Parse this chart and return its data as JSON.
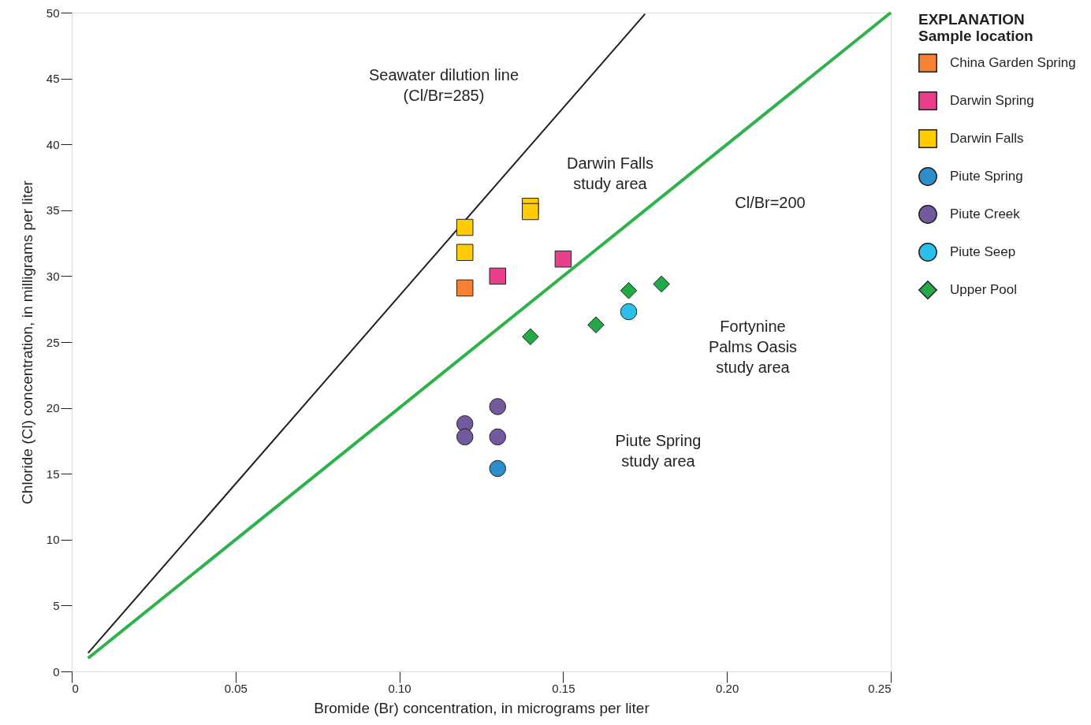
{
  "chart_data": {
    "type": "scatter",
    "xlabel": "Bromide (Br) concentration, in micrograms per liter",
    "ylabel": "Chloride (Cl) concentration, in milligrams per liter",
    "legend_title": "EXPLANATION\nSample location",
    "legend": "right",
    "xlim": [
      0,
      0.25
    ],
    "xticks": [
      {
        "value": 0,
        "label": "0"
      },
      {
        "value": 0.05,
        "label": "0.05"
      },
      {
        "value": 0.1,
        "label": "0.10"
      },
      {
        "value": 0.15,
        "label": "0.15"
      },
      {
        "value": 0.2,
        "label": "0.20"
      },
      {
        "value": 0.25,
        "label": "0.25"
      }
    ],
    "ylim": [
      0,
      50
    ],
    "yticks": [
      0,
      5,
      10,
      15,
      20,
      25,
      30,
      35,
      40,
      45,
      50
    ],
    "grid": false,
    "series": [
      {
        "type": "line",
        "color": "#231f20",
        "x": [
          0.005,
          0.175
        ],
        "values": [
          1.4,
          49.9
        ],
        "line_style": "solid"
      },
      {
        "type": "line",
        "color": "#2db34a",
        "x": [
          0.005,
          0.25
        ],
        "values": [
          1.0,
          50.0
        ],
        "line_style": "solid"
      },
      {
        "name": "China Garden Spring",
        "color": "#f58233",
        "marker": "square",
        "x": [
          0.12
        ],
        "values": [
          29.1
        ]
      },
      {
        "name": "Darwin Spring",
        "color": "#e83e8c",
        "marker": "square",
        "x": [
          0.13,
          0.15
        ],
        "values": [
          30.0,
          31.3
        ]
      },
      {
        "name": "Darwin Falls",
        "color": "#ffcc00",
        "marker": "square",
        "x": [
          0.12,
          0.12,
          0.14,
          0.14
        ],
        "values": [
          33.7,
          31.8,
          35.3,
          34.9
        ]
      },
      {
        "name": "Piute Spring",
        "color": "#2a8fcc",
        "marker": "circle",
        "x": [
          0.13
        ],
        "values": [
          15.4
        ]
      },
      {
        "name": "Piute Creek",
        "color": "#735a9e",
        "marker": "circle",
        "x": [
          0.12,
          0.12,
          0.13,
          0.13
        ],
        "values": [
          18.8,
          17.8,
          20.1,
          17.8
        ]
      },
      {
        "name": "Piute Seep",
        "color": "#2bbfec",
        "marker": "circle",
        "x": [
          0.17
        ],
        "values": [
          27.3
        ]
      },
      {
        "name": "Upper Pool",
        "color": "#22aa4a",
        "marker": "diamond",
        "x": [
          0.14,
          0.16,
          0.17,
          0.18
        ],
        "values": [
          25.4,
          26.3,
          28.9,
          29.4
        ]
      }
    ],
    "annotations": [
      "Seawater dilution line\n(Cl/Br=285)",
      "Darwin Falls\nstudy area",
      "Cl/Br=200",
      "Fortynine\nPalms Oasis\nstudy area",
      "Piute Spring\nstudy area"
    ]
  }
}
